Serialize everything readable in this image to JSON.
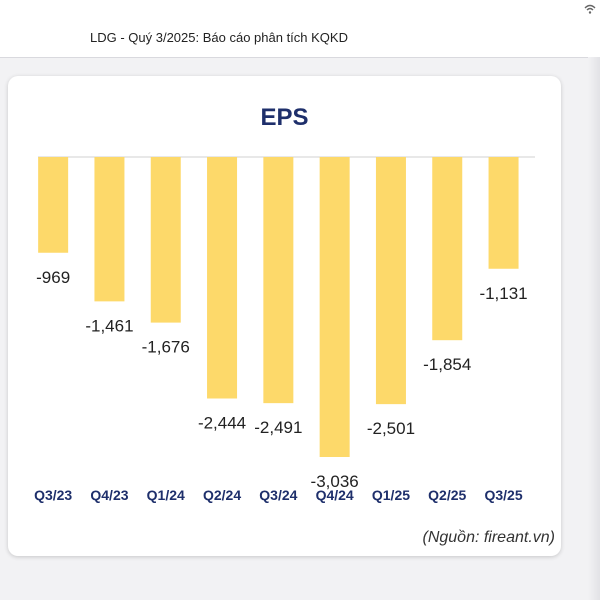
{
  "header": {
    "title": "LDG - Quý 3/2025: Báo cáo phân tích KQKD"
  },
  "source_note": "(Nguồn: fireant.vn)",
  "colors": {
    "bar": "#fdd96a",
    "title": "#1e2f6b",
    "baseline": "#d0d0d0"
  },
  "chart_data": {
    "type": "bar",
    "title": "EPS",
    "xlabel": "",
    "ylabel": "",
    "categories": [
      "Q3/23",
      "Q4/23",
      "Q1/24",
      "Q2/24",
      "Q3/24",
      "Q4/24",
      "Q1/25",
      "Q2/25",
      "Q3/25"
    ],
    "values": [
      -969,
      -1461,
      -1676,
      -2444,
      -2491,
      -3036,
      -2501,
      -1854,
      -1131
    ],
    "labels": [
      "-969",
      "-1,461",
      "-1,676",
      "-2,444",
      "-2,491",
      "-3,036",
      "-2,501",
      "-1,854",
      "-1,131"
    ],
    "ylim": [
      -3036,
      0
    ],
    "grid": false,
    "legend": "none"
  }
}
